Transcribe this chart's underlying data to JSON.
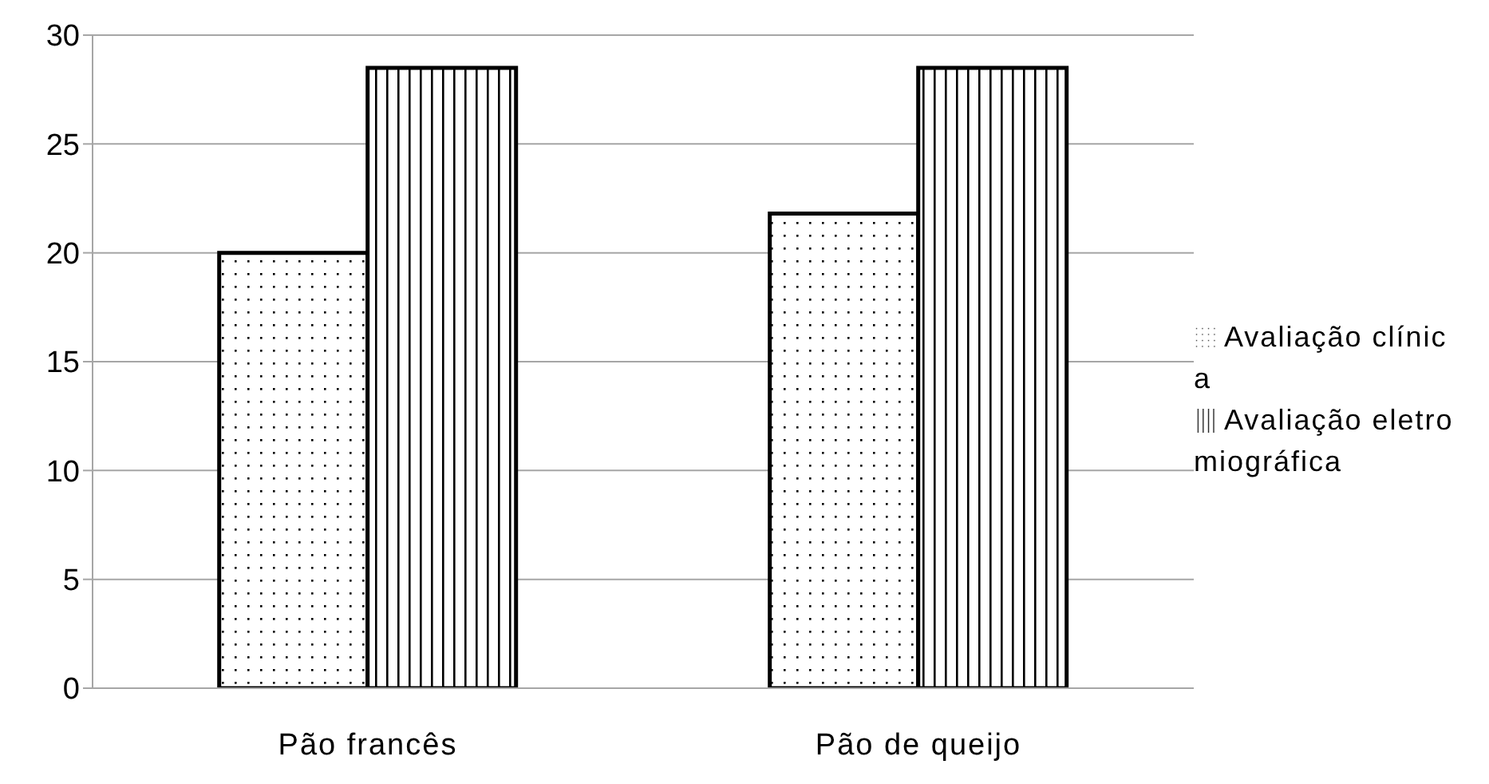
{
  "chart_data": {
    "type": "bar",
    "categories": [
      "Pão francês",
      "Pão de queijo"
    ],
    "series": [
      {
        "name": "Avaliação clínica",
        "color": "#000000",
        "values": [
          20,
          21.8
        ]
      },
      {
        "name": "Avaliação eletromiográfica",
        "color": "#000000",
        "values": [
          28.5,
          28.5
        ]
      }
    ],
    "ylim": [
      0,
      30
    ],
    "yticks": [
      0,
      5,
      10,
      15,
      20,
      25,
      30
    ],
    "grid": "y",
    "legend": "right"
  }
}
